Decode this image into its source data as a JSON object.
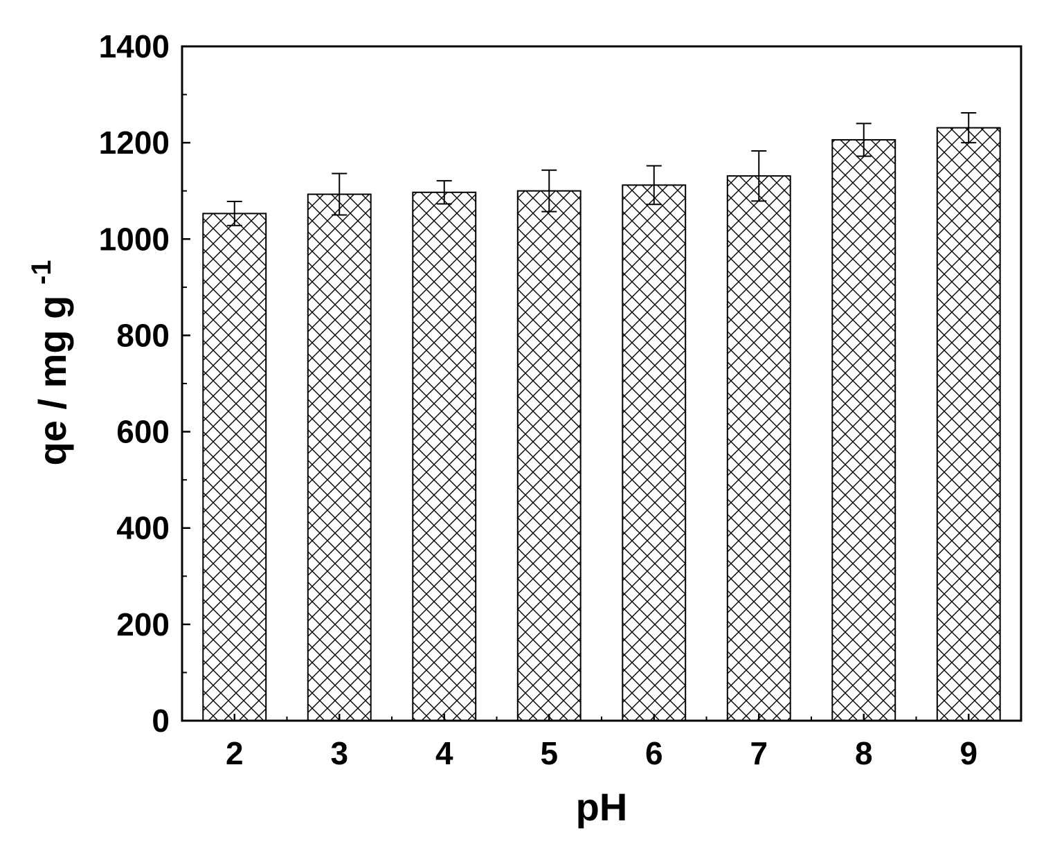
{
  "chart_data": {
    "type": "bar",
    "title": "",
    "xlabel": "pH",
    "ylabel": {
      "main": "qe / mg g",
      "superscript": "-1"
    },
    "categories": [
      "2",
      "3",
      "4",
      "5",
      "6",
      "7",
      "8",
      "9"
    ],
    "values": [
      1053,
      1093,
      1097,
      1100,
      1112,
      1131,
      1206,
      1231
    ],
    "errors": [
      25,
      43,
      24,
      43,
      40,
      52,
      34,
      31
    ],
    "ylim": [
      0,
      1400
    ],
    "yticks": [
      "0",
      "200",
      "400",
      "600",
      "800",
      "1000",
      "1200",
      "1400"
    ],
    "bar_fill": "crosshatch",
    "colors": {
      "bar_edge": "#000000",
      "hatch": "#000000",
      "background": "#ffffff"
    },
    "grid": false,
    "legend": "none"
  }
}
